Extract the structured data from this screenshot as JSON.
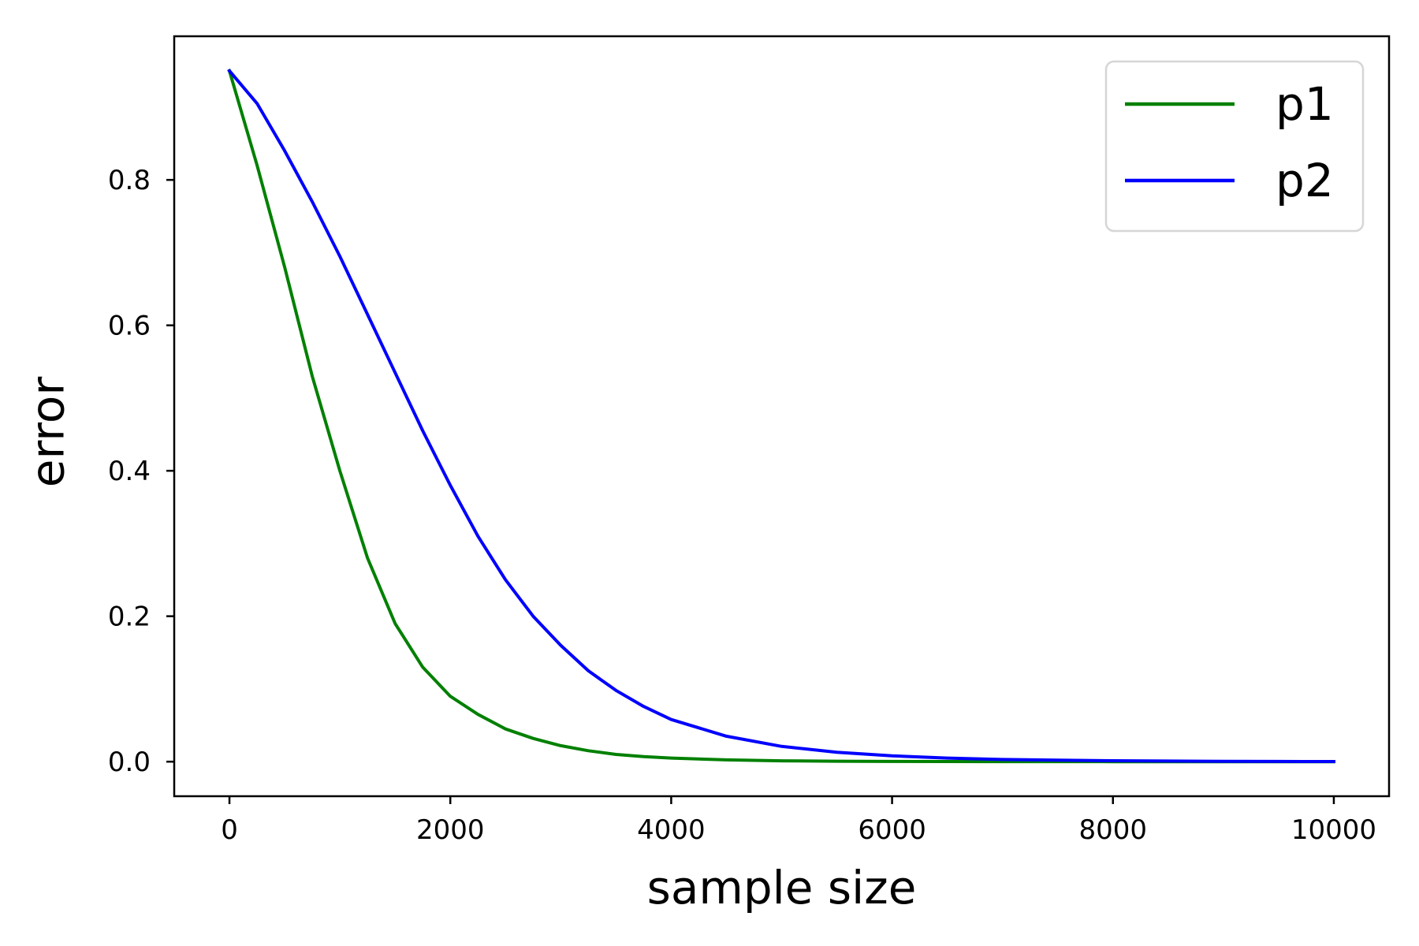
{
  "chart_data": {
    "type": "line",
    "title": "",
    "xlabel": "sample size",
    "ylabel": "error",
    "xlim": [
      -500,
      10500
    ],
    "ylim": [
      -0.0475,
      0.9975
    ],
    "xticks": [
      0,
      2000,
      4000,
      6000,
      8000,
      10000
    ],
    "xtick_labels": [
      "0",
      "2000",
      "4000",
      "6000",
      "8000",
      "10000"
    ],
    "yticks": [
      0.0,
      0.2,
      0.4,
      0.6,
      0.8
    ],
    "ytick_labels": [
      "0.0",
      "0.2",
      "0.4",
      "0.6",
      "0.8"
    ],
    "grid": false,
    "legend_position": "top-right",
    "x": [
      0,
      250,
      500,
      750,
      1000,
      1250,
      1500,
      1750,
      2000,
      2250,
      2500,
      2750,
      3000,
      3250,
      3500,
      3750,
      4000,
      4500,
      5000,
      5500,
      6000,
      6500,
      7000,
      7500,
      8000,
      8500,
      9000,
      9500,
      10000
    ],
    "series": [
      {
        "name": "p1",
        "color": "#008000",
        "values": [
          0.95,
          0.82,
          0.68,
          0.53,
          0.4,
          0.28,
          0.19,
          0.13,
          0.09,
          0.065,
          0.045,
          0.032,
          0.022,
          0.015,
          0.01,
          0.007,
          0.005,
          0.0025,
          0.0012,
          0.0006,
          0.0003,
          0.00015,
          8e-05,
          4e-05,
          2e-05,
          1e-05,
          0.0,
          0.0,
          0.0
        ]
      },
      {
        "name": "p2",
        "color": "#0000ff",
        "values": [
          0.95,
          0.905,
          0.84,
          0.77,
          0.695,
          0.615,
          0.535,
          0.455,
          0.38,
          0.31,
          0.25,
          0.2,
          0.16,
          0.125,
          0.098,
          0.076,
          0.058,
          0.035,
          0.021,
          0.013,
          0.008,
          0.005,
          0.003,
          0.002,
          0.0013,
          0.0008,
          0.0005,
          0.0003,
          0.0002
        ]
      }
    ]
  }
}
